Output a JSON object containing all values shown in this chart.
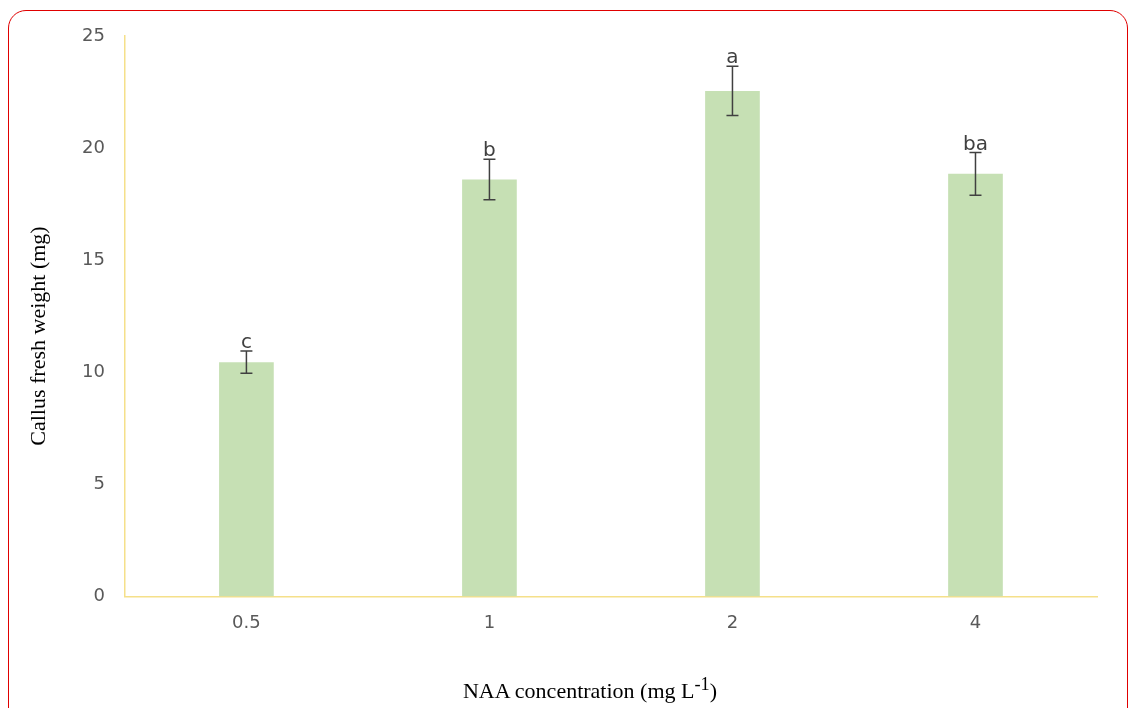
{
  "chart_data": {
    "type": "bar",
    "xlabel": "NAA concentration (mg L$^{-1}$)",
    "ylabel": "Callus fresh weight (mg)",
    "categories": [
      "0.5",
      "1",
      "2",
      "4"
    ],
    "values": [
      10.45,
      18.6,
      22.55,
      18.85
    ],
    "errors": [
      0.5,
      0.9,
      1.1,
      0.95
    ],
    "color": "#c6e0b4",
    "ylim": [
      0,
      25
    ],
    "yticks": [
      0,
      5,
      10,
      15,
      20,
      25
    ],
    "grid": false,
    "legend": false,
    "annotations": [
      {
        "text": "c",
        "x": "0.5",
        "y": 10.95
      },
      {
        "text": "b",
        "x": "1",
        "y": 19.5
      },
      {
        "text": "a",
        "x": "2",
        "y": 23.65
      },
      {
        "text": "ba",
        "x": "4",
        "y": 19.8
      }
    ]
  }
}
